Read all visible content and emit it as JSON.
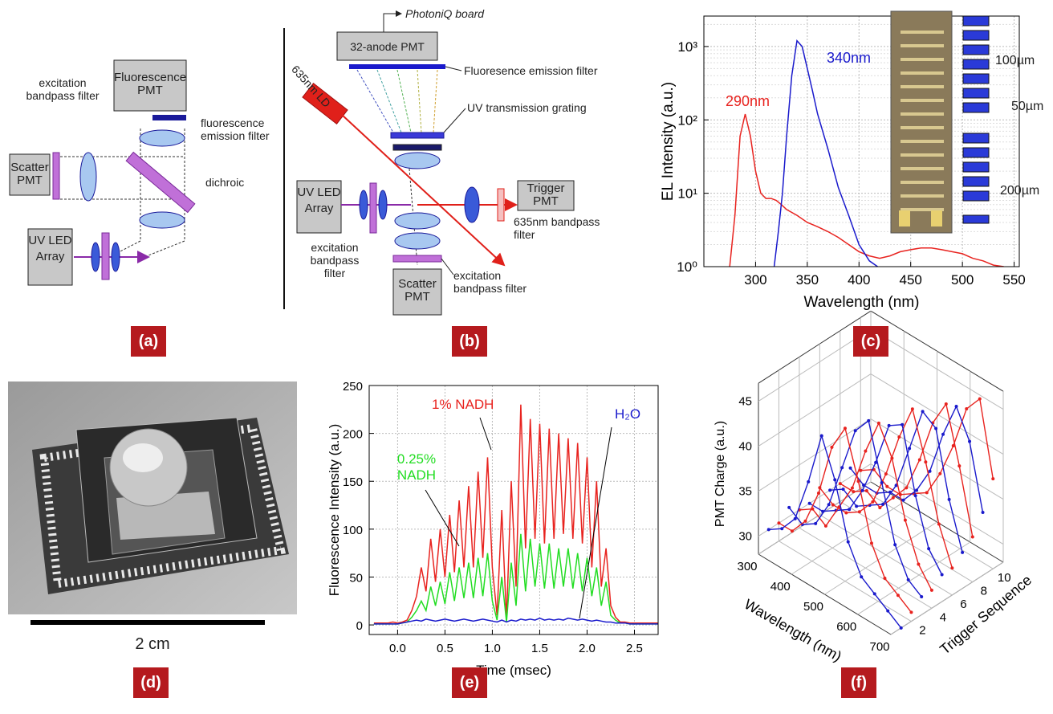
{
  "panel_a": {
    "label": "(a)",
    "fluorescence_pmt": "Fluorescence PMT",
    "excitation_filter": "excitation bandpass filter",
    "emission_filter": "fluorescence emission filter",
    "scatter_pmt": "Scatter PMT",
    "dichroic": "dichroic",
    "uv_led_array": "UV LED Array"
  },
  "panel_b": {
    "label": "(b)",
    "board": "PhotoniQ board",
    "anode_pmt": "32-anode PMT",
    "emission_filter": "Fluoresence emission filter",
    "grating": "UV transmission grating",
    "laser": "635nm LD",
    "uv_led_array": "UV LED Array",
    "trigger_pmt": "Trigger PMT",
    "trigger_filter": "635nm bandpass filter",
    "excitation_filter_left": "excitation bandpass filter",
    "scatter_pmt": "Scatter PMT",
    "excitation_filter_bottom": "excitation bandpass filter"
  },
  "panel_d": {
    "label": "(d)",
    "scale_bar": "2 cm"
  },
  "chart_data": [
    {
      "type": "line",
      "panel_label": "(c)",
      "xlabel": "Wavelength (nm)",
      "ylabel": "EL Intensity (a.u.)",
      "log_y": true,
      "grid": true,
      "xlim": [
        250,
        555
      ],
      "ylim": [
        1,
        2600
      ],
      "xticks": [
        300,
        350,
        400,
        450,
        500,
        550
      ],
      "yticks": [
        {
          "value": 1,
          "label": "10⁰"
        },
        {
          "value": 10,
          "label": "10¹"
        },
        {
          "value": 100,
          "label": "10²"
        },
        {
          "value": 1000,
          "label": "10³"
        }
      ],
      "series": [
        {
          "color": "#e8231f",
          "x": [
            275,
            280,
            285,
            290,
            295,
            300,
            305,
            310,
            315,
            320,
            325,
            330,
            340,
            350,
            360,
            370,
            380,
            390,
            400,
            410,
            420,
            430,
            440,
            450,
            460,
            470,
            480,
            490,
            500,
            510,
            520,
            530,
            540
          ],
          "values": [
            1,
            5,
            60,
            120,
            60,
            20,
            10,
            8.5,
            8.5,
            8,
            7,
            6,
            5,
            4,
            3.5,
            3,
            2.5,
            2,
            1.6,
            1.4,
            1.3,
            1.4,
            1.6,
            1.7,
            1.8,
            1.8,
            1.7,
            1.6,
            1.5,
            1.3,
            1.2,
            1.05,
            1
          ]
        },
        {
          "color": "#1a1acc",
          "x": [
            318,
            322,
            326,
            330,
            335,
            340,
            345,
            350,
            355,
            360,
            370,
            380,
            390,
            400,
            410,
            418
          ],
          "values": [
            1,
            3,
            10,
            60,
            400,
            1200,
            1000,
            500,
            250,
            120,
            40,
            12,
            5,
            2,
            1.2,
            1
          ]
        }
      ],
      "annotations": [
        "290nm",
        "340nm"
      ],
      "inset_labels": [
        "100µm",
        "50µm",
        "200µm"
      ]
    },
    {
      "type": "line",
      "panel_label": "(e)",
      "xlabel": "Time (msec)",
      "ylabel": "Fluorescence Intensity (a.u.)",
      "grid": true,
      "xlim": [
        -0.3,
        2.75
      ],
      "ylim": [
        -10,
        250
      ],
      "xticks": [
        {
          "value": 0,
          "label": "0.0"
        },
        0.5,
        {
          "value": 1,
          "label": "1.0"
        },
        1.5,
        {
          "value": 2,
          "label": "2.0"
        },
        2.5
      ],
      "yticks": [
        0,
        50,
        100,
        150,
        200,
        250
      ],
      "x": [
        -0.25,
        -0.2,
        -0.15,
        -0.1,
        -0.05,
        0,
        0.05,
        0.1,
        0.15,
        0.2,
        0.25,
        0.3,
        0.35,
        0.4,
        0.45,
        0.5,
        0.55,
        0.6,
        0.65,
        0.7,
        0.75,
        0.8,
        0.85,
        0.9,
        0.95,
        1,
        1.05,
        1.1,
        1.15,
        1.2,
        1.25,
        1.3,
        1.35,
        1.4,
        1.45,
        1.5,
        1.55,
        1.6,
        1.65,
        1.7,
        1.75,
        1.8,
        1.85,
        1.9,
        1.95,
        2,
        2.05,
        2.1,
        2.15,
        2.2,
        2.25,
        2.3,
        2.35,
        2.4,
        2.45,
        2.5,
        2.55,
        2.6,
        2.65,
        2.7,
        2.75
      ],
      "series": [
        {
          "color": "#e8231f",
          "values": [
            2,
            2,
            2,
            2,
            3,
            2,
            3,
            5,
            15,
            30,
            60,
            35,
            90,
            45,
            100,
            50,
            115,
            55,
            130,
            60,
            145,
            60,
            160,
            70,
            175,
            60,
            10,
            120,
            5,
            150,
            40,
            230,
            80,
            215,
            90,
            210,
            85,
            205,
            90,
            200,
            95,
            195,
            90,
            190,
            85,
            175,
            60,
            150,
            40,
            80,
            20,
            8,
            3,
            3,
            2,
            2,
            2,
            2,
            2,
            2,
            2
          ]
        },
        {
          "color": "#22dd22",
          "values": [
            1,
            1,
            1,
            1,
            1,
            1,
            2,
            3,
            8,
            15,
            25,
            15,
            40,
            20,
            45,
            22,
            55,
            25,
            60,
            28,
            65,
            28,
            70,
            30,
            75,
            25,
            5,
            50,
            3,
            65,
            20,
            95,
            35,
            90,
            40,
            85,
            38,
            85,
            38,
            80,
            40,
            80,
            38,
            75,
            35,
            70,
            30,
            60,
            20,
            45,
            10,
            5,
            2,
            2,
            1,
            1,
            1,
            1,
            1,
            1,
            1
          ]
        },
        {
          "color": "#1a1acc",
          "values": [
            1,
            1,
            1,
            1,
            1,
            1,
            2,
            3,
            4,
            5,
            4,
            6,
            5,
            4,
            5,
            6,
            5,
            4,
            5,
            6,
            5,
            4,
            5,
            6,
            5,
            4,
            3,
            5,
            3,
            5,
            4,
            6,
            5,
            6,
            5,
            7,
            5,
            6,
            5,
            6,
            5,
            7,
            6,
            5,
            6,
            5,
            4,
            5,
            4,
            3,
            3,
            2,
            2,
            2,
            1,
            1,
            1,
            1,
            1,
            1,
            1
          ]
        }
      ],
      "annotations": [
        "1% NADH",
        "0.25% NADH",
        "H₂O"
      ]
    },
    {
      "type": "line3d",
      "panel_label": "(f)",
      "xlabel": "Wavelength (nm)",
      "ylabel": "Trigger Sequence",
      "zlabel": "PMT Charge (a.u.)",
      "xlim": [
        300,
        700
      ],
      "ylim": [
        0,
        11
      ],
      "zlim": [
        28,
        47
      ],
      "xticks": [
        300,
        400,
        500,
        600,
        700
      ],
      "yticks": [
        2,
        4,
        6,
        8,
        10
      ],
      "zticks": [
        30,
        35,
        40,
        45
      ],
      "x": [
        300,
        340,
        380,
        420,
        460,
        500,
        540,
        580,
        620,
        660,
        700
      ],
      "series": [
        {
          "color": "#1a1acc",
          "trigger": 1,
          "values": [
            30,
            31,
            33,
            38,
            44,
            40,
            34,
            31,
            30,
            29,
            28
          ]
        },
        {
          "color": "#e8231f",
          "trigger": 2,
          "values": [
            30,
            30,
            32,
            36,
            42,
            45,
            40,
            34,
            31,
            30,
            29
          ]
        },
        {
          "color": "#1a1acc",
          "trigger": 3,
          "values": [
            31,
            30,
            31,
            34,
            39,
            44,
            46,
            40,
            34,
            31,
            30
          ]
        },
        {
          "color": "#e8231f",
          "trigger": 4,
          "values": [
            30,
            31,
            30,
            33,
            36,
            41,
            45,
            42,
            36,
            32,
            30
          ]
        },
        {
          "color": "#1a1acc",
          "trigger": 5,
          "values": [
            30,
            30,
            31,
            32,
            35,
            39,
            44,
            45,
            38,
            33,
            31
          ]
        },
        {
          "color": "#e8231f",
          "trigger": 6,
          "values": [
            31,
            30,
            30,
            31,
            33,
            37,
            42,
            46,
            41,
            35,
            31
          ]
        },
        {
          "color": "#1a1acc",
          "trigger": 7,
          "values": [
            30,
            31,
            30,
            31,
            32,
            35,
            40,
            45,
            44,
            37,
            32
          ]
        },
        {
          "color": "#e8231f",
          "trigger": 8,
          "values": [
            30,
            30,
            31,
            30,
            32,
            34,
            38,
            43,
            46,
            40,
            33
          ]
        },
        {
          "color": "#1a1acc",
          "trigger": 9,
          "values": [
            31,
            30,
            30,
            31,
            31,
            33,
            36,
            41,
            45,
            42,
            35
          ]
        },
        {
          "color": "#e8231f",
          "trigger": 10,
          "values": [
            30,
            31,
            30,
            30,
            31,
            32,
            35,
            39,
            44,
            46,
            38
          ]
        }
      ]
    }
  ]
}
